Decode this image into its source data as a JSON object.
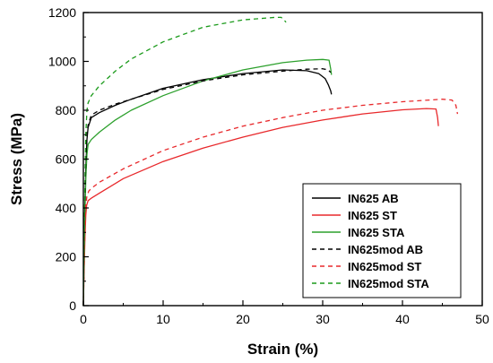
{
  "chart_data": {
    "type": "line",
    "xlabel": "Strain (%)",
    "ylabel": "Stress (MPa)",
    "xlim": [
      0,
      50
    ],
    "ylim": [
      0,
      1200
    ],
    "x_ticks": [
      0,
      10,
      20,
      30,
      40,
      50
    ],
    "y_ticks": [
      0,
      200,
      400,
      600,
      800,
      1000,
      1200
    ],
    "legend_position": "bottom-right",
    "grid": false,
    "series": [
      {
        "name": "IN625 AB",
        "color": "#000000",
        "dash": "solid",
        "x": [
          0,
          0.15,
          0.3,
          0.45,
          0.6,
          1,
          2,
          4,
          6,
          10,
          15,
          20,
          25,
          28,
          29.5,
          30.3,
          30.7,
          31,
          31.1
        ],
        "y": [
          0,
          350,
          560,
          680,
          730,
          770,
          790,
          820,
          845,
          890,
          925,
          950,
          965,
          962,
          950,
          930,
          905,
          880,
          865
        ]
      },
      {
        "name": "IN625 ST",
        "color": "#e8282b",
        "dash": "solid",
        "x": [
          0,
          0.1,
          0.2,
          0.3,
          0.4,
          0.6,
          1,
          2,
          5,
          10,
          15,
          20,
          25,
          30,
          35,
          40,
          43,
          44.2,
          44.4,
          44.5
        ],
        "y": [
          0,
          150,
          280,
          370,
          410,
          430,
          440,
          460,
          520,
          590,
          645,
          690,
          730,
          760,
          785,
          802,
          807,
          805,
          770,
          735
        ]
      },
      {
        "name": "IN625 STA",
        "color": "#2ca02c",
        "dash": "solid",
        "x": [
          0,
          0.15,
          0.3,
          0.45,
          0.6,
          1,
          2,
          4,
          6,
          10,
          15,
          20,
          25,
          28,
          30,
          30.8,
          31,
          31.1
        ],
        "y": [
          0,
          300,
          520,
          620,
          660,
          680,
          710,
          760,
          800,
          860,
          920,
          965,
          995,
          1005,
          1008,
          1005,
          970,
          945
        ]
      },
      {
        "name": "IN625mod AB",
        "color": "#000000",
        "dash": "dashed",
        "x": [
          0,
          0.15,
          0.3,
          0.45,
          0.6,
          1,
          2,
          4,
          6,
          10,
          15,
          20,
          25,
          28,
          30,
          30.7,
          31
        ],
        "y": [
          0,
          350,
          580,
          700,
          740,
          780,
          800,
          825,
          845,
          885,
          920,
          945,
          960,
          968,
          970,
          965,
          955
        ]
      },
      {
        "name": "IN625mod ST",
        "color": "#e8282b",
        "dash": "dashed",
        "x": [
          0,
          0.1,
          0.2,
          0.3,
          0.45,
          0.7,
          1,
          2,
          5,
          10,
          15,
          20,
          25,
          30,
          35,
          40,
          45,
          46.2,
          46.7,
          46.9
        ],
        "y": [
          0,
          170,
          320,
          410,
          450,
          470,
          480,
          505,
          560,
          635,
          690,
          735,
          770,
          800,
          820,
          835,
          845,
          842,
          820,
          785
        ]
      },
      {
        "name": "IN625mod STA",
        "color": "#1a9a1a",
        "dash": "dashed",
        "x": [
          0,
          0.15,
          0.3,
          0.45,
          0.6,
          1,
          2,
          4,
          6,
          10,
          15,
          20,
          24,
          24.8,
          25.2,
          25.4
        ],
        "y": [
          0,
          400,
          700,
          800,
          830,
          860,
          900,
          960,
          1010,
          1080,
          1140,
          1170,
          1180,
          1180,
          1168,
          1160
        ]
      }
    ]
  }
}
